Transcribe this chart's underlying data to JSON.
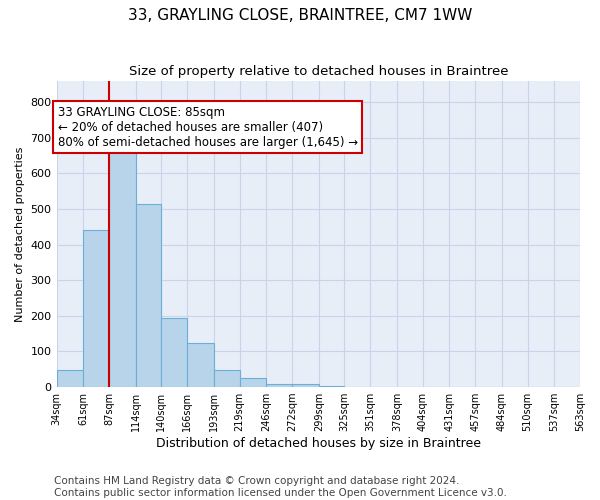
{
  "title": "33, GRAYLING CLOSE, BRAINTREE, CM7 1WW",
  "subtitle": "Size of property relative to detached houses in Braintree",
  "xlabel": "Distribution of detached houses by size in Braintree",
  "ylabel": "Number of detached properties",
  "bar_values": [
    47,
    440,
    660,
    515,
    193,
    125,
    47,
    25,
    8,
    8,
    2,
    0,
    0,
    0,
    0,
    0,
    0,
    0,
    0,
    0
  ],
  "bin_edges": [
    34,
    61,
    87,
    114,
    140,
    166,
    193,
    219,
    246,
    272,
    299,
    325,
    351,
    378,
    404,
    431,
    457,
    484,
    510,
    537,
    563
  ],
  "bar_color": "#b8d4ea",
  "bar_edge_color": "#6baed6",
  "property_line_x": 87,
  "property_line_color": "#cc0000",
  "annotation_text": "33 GRAYLING CLOSE: 85sqm\n← 20% of detached houses are smaller (407)\n80% of semi-detached houses are larger (1,645) →",
  "annotation_box_color": "#cc0000",
  "ylim": [
    0,
    860
  ],
  "yticks": [
    0,
    100,
    200,
    300,
    400,
    500,
    600,
    700,
    800
  ],
  "grid_color": "#c8d4e8",
  "background_color": "#e8eef8",
  "footer_line1": "Contains HM Land Registry data © Crown copyright and database right 2024.",
  "footer_line2": "Contains public sector information licensed under the Open Government Licence v3.0.",
  "title_fontsize": 11,
  "subtitle_fontsize": 9.5,
  "annotation_fontsize": 8.5,
  "footer_fontsize": 7.5,
  "ylabel_fontsize": 8,
  "xlabel_fontsize": 9
}
